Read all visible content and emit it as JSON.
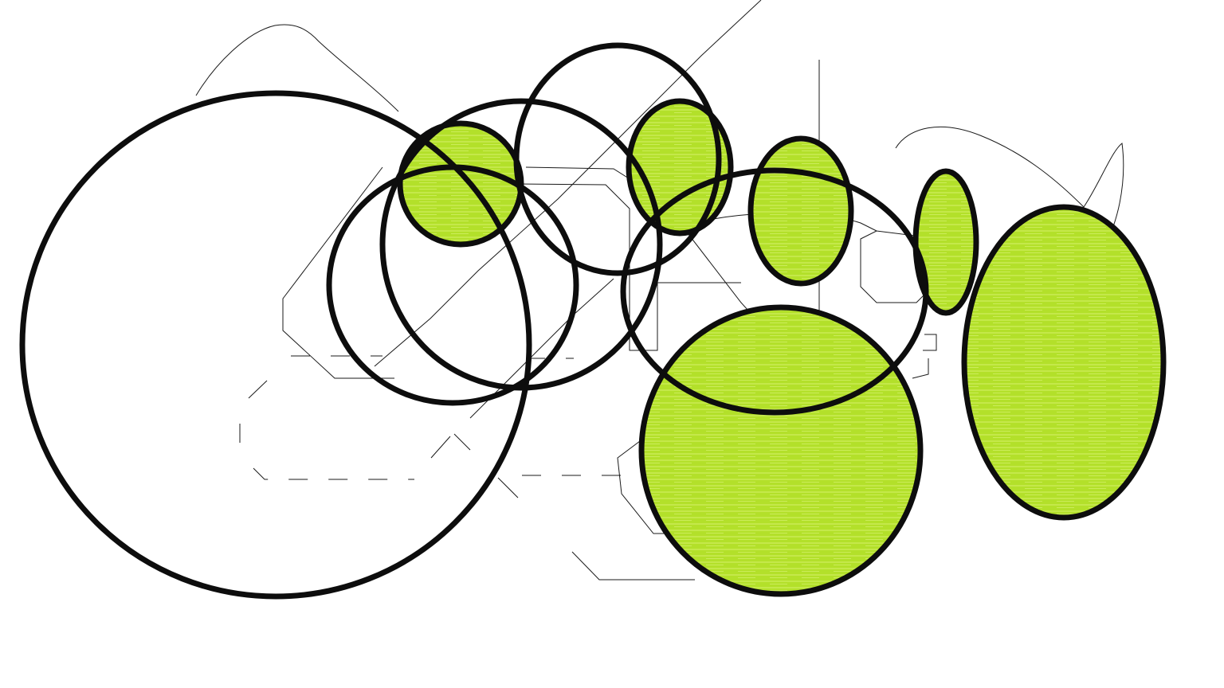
{
  "canvas": {
    "background": "#ffffff"
  },
  "colors": {
    "fill": "#b3e02a",
    "fill_light": "#d4f06a",
    "stroke": "#0d0d0d",
    "sketch_line": "#1a1a1a"
  },
  "shapes": [
    {
      "name": "large-outline-circle",
      "filled": false
    },
    {
      "name": "mid-outline-circle-a",
      "filled": false
    },
    {
      "name": "mid-outline-circle-b",
      "filled": false
    },
    {
      "name": "top-outline-circle",
      "filled": false
    },
    {
      "name": "right-outline-circle",
      "filled": false
    },
    {
      "name": "small-green-circle-left",
      "filled": true
    },
    {
      "name": "small-green-circle-top",
      "filled": true
    },
    {
      "name": "green-oval-center",
      "filled": true
    },
    {
      "name": "green-oval-narrow",
      "filled": true
    },
    {
      "name": "large-green-circle-bottom",
      "filled": true
    },
    {
      "name": "green-oval-right",
      "filled": true
    }
  ]
}
